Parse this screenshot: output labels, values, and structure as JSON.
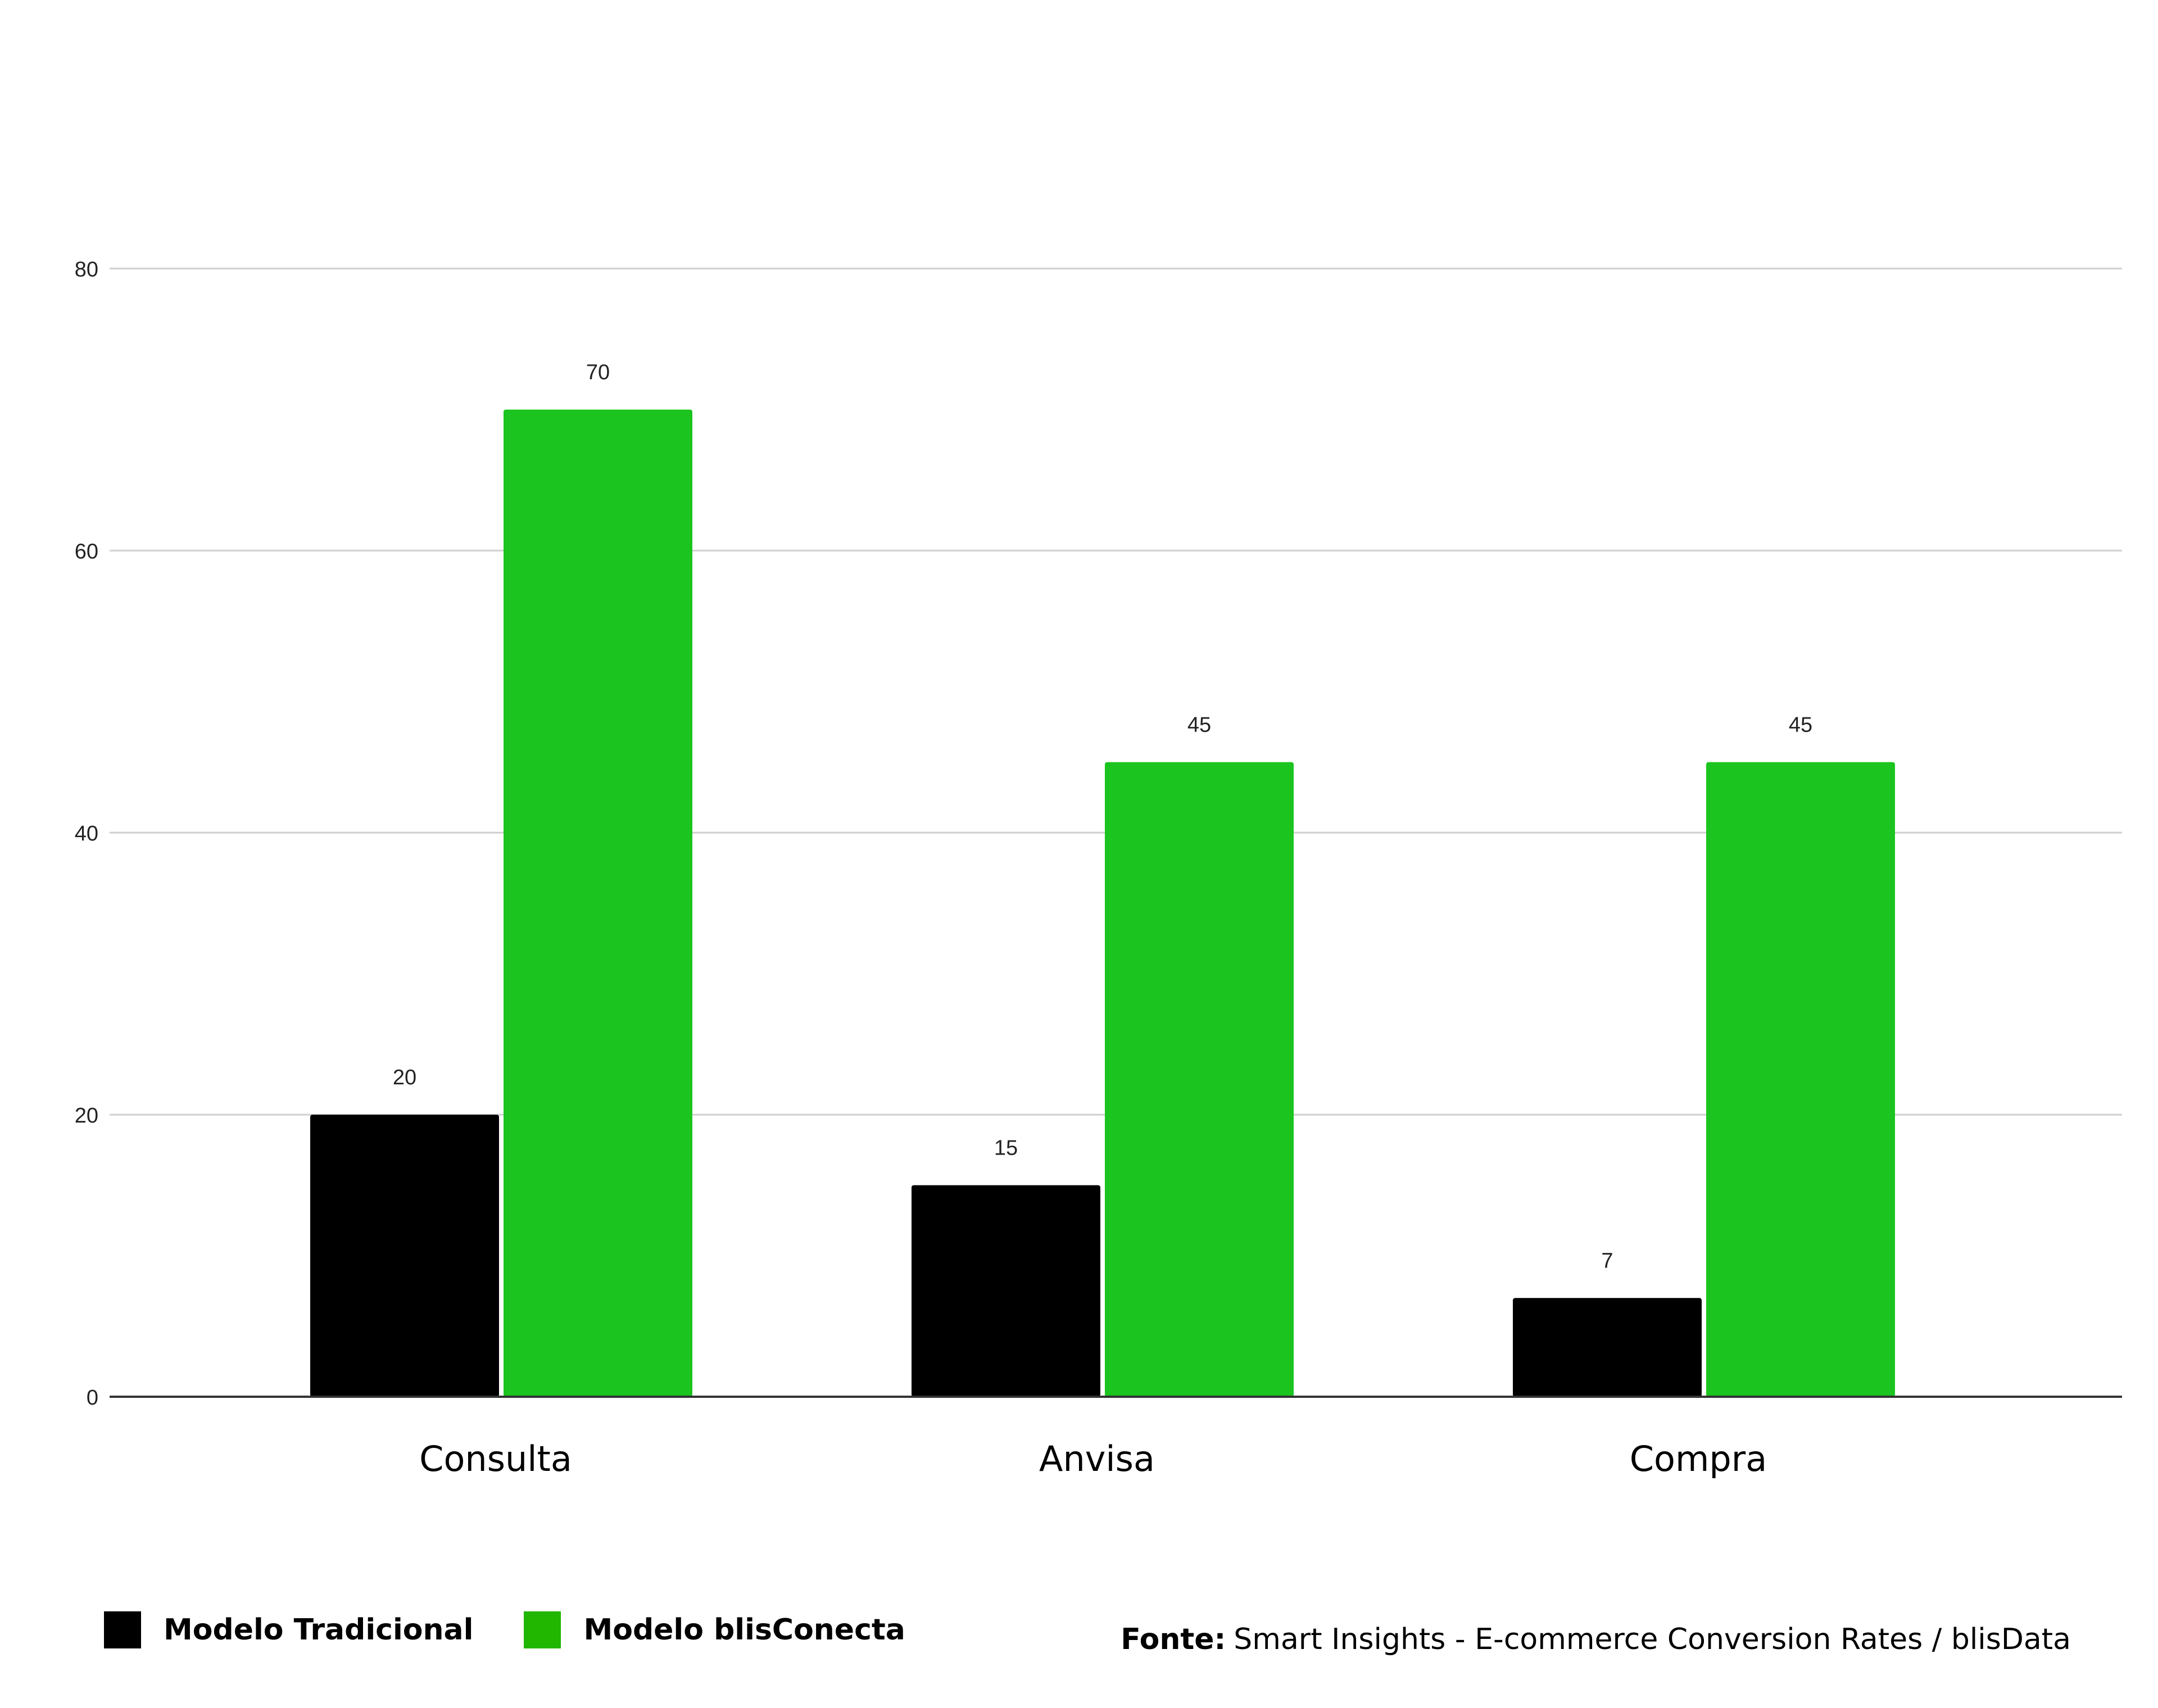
{
  "chart_data": {
    "type": "bar",
    "categories": [
      "Consulta",
      "Anvisa",
      "Compra"
    ],
    "series": [
      {
        "name": "Modelo Tradicional",
        "values": [
          20,
          15,
          7
        ],
        "color": "#000000"
      },
      {
        "name": "Modelo blisConecta",
        "values": [
          70,
          45,
          45
        ],
        "color": "#1BC41F"
      }
    ],
    "ylim": [
      0,
      80
    ],
    "yticks": [
      0,
      20,
      40,
      60,
      80
    ],
    "grid": true,
    "legend_position": "bottom-left"
  },
  "legend": {
    "items": [
      {
        "label": "Modelo Tradicional",
        "color": "#000000"
      },
      {
        "label": "Modelo blisConecta",
        "color": "#21B600"
      }
    ]
  },
  "source": {
    "label": "Fonte:",
    "text": "Smart Insights - E-commerce Conversion Rates / blisData"
  }
}
